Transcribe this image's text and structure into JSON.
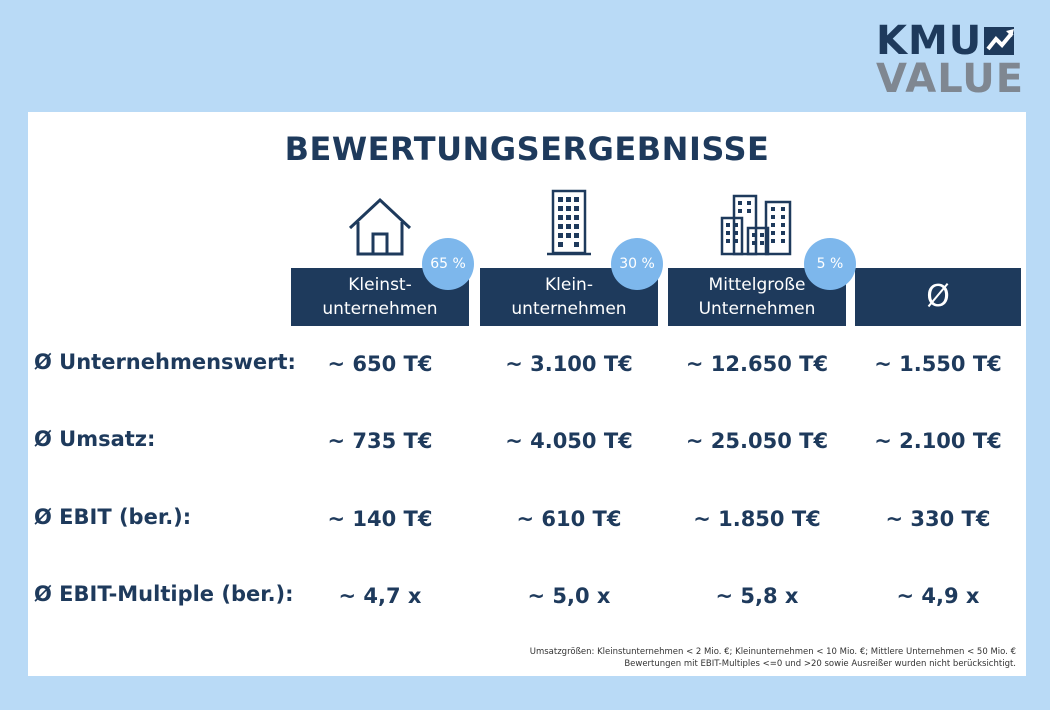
{
  "logo": {
    "line1": "KMU",
    "line2": "VALUE"
  },
  "title": "BEWERTUNGSERGEBNISSE",
  "columns": [
    {
      "label": "Kleinst-\nunternehmen",
      "badge": "65 %",
      "icon": "house-icon"
    },
    {
      "label": "Klein-\nunternehmen",
      "badge": "30 %",
      "icon": "office-building-icon"
    },
    {
      "label": "Mittelgroße\nUnternehmen",
      "badge": "5 %",
      "icon": "city-buildings-icon"
    },
    {
      "label": "Ø",
      "badge": null,
      "icon": null
    }
  ],
  "rows": [
    {
      "label": "Ø Unternehmenswert:",
      "values": [
        "~ 650 T€",
        "~ 3.100 T€",
        "~ 12.650 T€",
        "~ 1.550 T€"
      ]
    },
    {
      "label": "Ø Umsatz:",
      "values": [
        "~ 735 T€",
        "~ 4.050 T€",
        "~ 25.050 T€",
        "~ 2.100 T€"
      ]
    },
    {
      "label": "Ø EBIT (ber.):",
      "values": [
        "~ 140 T€",
        "~ 610 T€",
        "~ 1.850 T€",
        "~ 330 T€"
      ]
    },
    {
      "label": "Ø EBIT-Multiple (ber.):",
      "values": [
        "~ 4,7 x",
        "~ 5,0 x",
        "~ 5,8 x",
        "~ 4,9 x"
      ]
    }
  ],
  "footnote": {
    "line1": "Umsatzgrößen: Kleinstunternehmen < 2 Mio. €; Kleinunternehmen < 10 Mio. €; Mittlere Unternehmen < 50 Mio. €",
    "line2": "Bewertungen mit EBIT-Multiples <=0 und >20 sowie Ausreißer wurden nicht berücksichtigt."
  },
  "colors": {
    "navy": "#1e3a5c",
    "badge": "#7db7ec",
    "background": "#b9daf6",
    "logo_gray": "#7f8791"
  }
}
